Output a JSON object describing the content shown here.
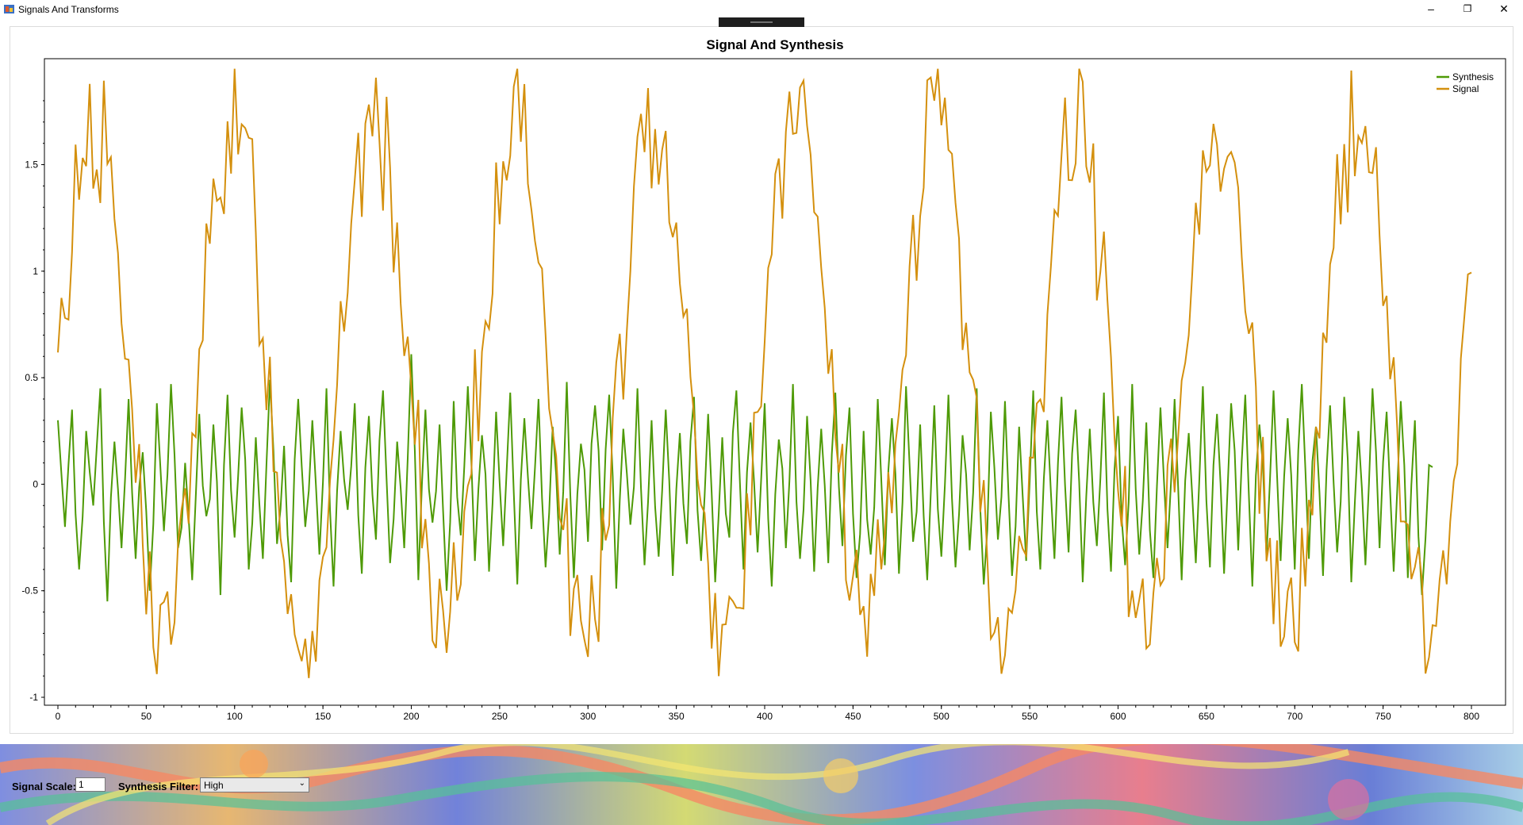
{
  "window": {
    "title": "Signals And Transforms",
    "minimize": "–",
    "restore": "❐",
    "close": "✕"
  },
  "chart": {
    "title": "Signal And Synthesis",
    "legend": [
      "Synthesis",
      "Signal"
    ]
  },
  "chart_data": {
    "type": "line",
    "title": "Signal And Synthesis",
    "xlabel": "",
    "ylabel": "",
    "xlim": [
      0,
      800
    ],
    "ylim": [
      -1,
      1.96
    ],
    "x_ticks": [
      0,
      50,
      100,
      150,
      200,
      250,
      300,
      350,
      400,
      450,
      500,
      550,
      600,
      650,
      700,
      750,
      800
    ],
    "y_ticks": [
      -1,
      -0.5,
      0,
      0.5,
      1,
      1.5
    ],
    "y_tick_labels": [
      "-1",
      "-0.5",
      "0",
      "0.5",
      "1",
      "1.5"
    ],
    "grid": false,
    "legend_position": "top-right",
    "series": [
      {
        "name": "Synthesis",
        "color": "#4e9a06",
        "x": [
          0,
          800
        ],
        "description_free": true,
        "values_sampled_every_4": [
          0.3,
          -0.2,
          0.35,
          -0.4,
          0.25,
          -0.1,
          0.45,
          -0.55,
          0.2,
          -0.3,
          0.4,
          -0.35,
          0.15,
          -0.5,
          0.38,
          -0.22,
          0.47,
          -0.3,
          0.1,
          -0.45,
          0.33,
          -0.15,
          0.28,
          -0.52,
          0.42,
          -0.25,
          0.36,
          -0.4,
          0.22,
          -0.35,
          0.49,
          -0.28,
          0.18,
          -0.46,
          0.4,
          -0.2,
          0.3,
          -0.33,
          0.45,
          -0.48,
          0.25,
          -0.12,
          0.38,
          -0.42,
          0.32,
          -0.26,
          0.44,
          -0.37,
          0.2,
          -0.3,
          0.61,
          -0.45,
          0.35,
          -0.18,
          0.28,
          -0.5,
          0.39,
          -0.24,
          0.46,
          -0.36,
          0.23,
          -0.41,
          0.34,
          -0.29,
          0.43,
          -0.47,
          0.31,
          -0.21,
          0.4,
          -0.39,
          0.27,
          -0.33,
          0.48,
          -0.44,
          0.19,
          -0.27,
          0.37,
          -0.31,
          0.42,
          -0.49,
          0.26,
          -0.19,
          0.45,
          -0.38,
          0.3,
          -0.34,
          0.35,
          -0.43,
          0.24,
          -0.28,
          0.41,
          -0.36,
          0.33,
          -0.46,
          0.22,
          -0.25,
          0.44,
          -0.4,
          0.29,
          -0.32,
          0.38,
          -0.48,
          0.21,
          -0.3,
          0.47,
          -0.35,
          0.32,
          -0.41,
          0.26,
          -0.37,
          0.43,
          -0.29,
          0.36,
          -0.44,
          0.25,
          -0.33,
          0.4,
          -0.38,
          0.31,
          -0.42,
          0.46,
          -0.27,
          0.28,
          -0.45,
          0.37,
          -0.34,
          0.42,
          -0.39,
          0.23,
          -0.31,
          0.45,
          -0.47,
          0.34,
          -0.26,
          0.39,
          -0.43,
          0.27,
          -0.36,
          0.44,
          -0.4,
          0.3,
          -0.35,
          0.41,
          -0.32,
          0.35,
          -0.46,
          0.26,
          -0.29,
          0.43,
          -0.41,
          0.32,
          -0.38,
          0.47,
          -0.33,
          0.29,
          -0.44,
          0.36,
          -0.3,
          0.4,
          -0.45,
          0.24,
          -0.37,
          0.46,
          -0.39,
          0.33,
          -0.42,
          0.38,
          -0.31,
          0.42,
          -0.48,
          0.28,
          -0.34,
          0.44,
          -0.36,
          0.31,
          -0.4,
          0.47,
          -0.35,
          0.27,
          -0.43,
          0.37,
          -0.32,
          0.41,
          -0.46,
          0.25,
          -0.38,
          0.45,
          -0.3,
          0.34,
          -0.41,
          0.39,
          -0.44,
          0.3,
          -0.52,
          0.09
        ]
      },
      {
        "name": "Signal",
        "color": "#d4900e",
        "description": "sine of period ~80 with amplitude ~1.2 and offset ~0.5 plus noise",
        "model": {
          "offset": 0.5,
          "amplitude": 1.2,
          "period": 79.5,
          "phase_x": 0,
          "noise": 0.25
        }
      }
    ]
  },
  "controls": {
    "scale_label": "Signal Scale:",
    "scale_value": "1",
    "filter_label": "Synthesis Filter:",
    "filter_value": "High"
  }
}
